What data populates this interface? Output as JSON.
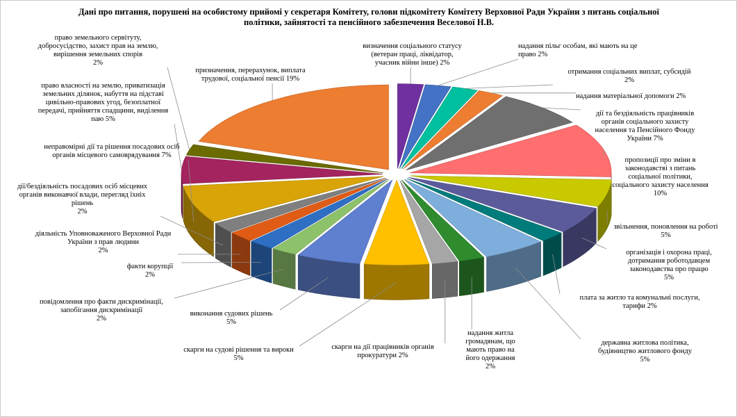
{
  "chart_data": {
    "type": "pie",
    "variant": "3d-exploded",
    "title": "Дані про питання, порушені на особистому прийомі у секретаря Комітету, голови підкомітету Комітету Верховної Ради України з питань соціальної політики, зайнятості та пенсійного забезпечення Веселової Н.В.",
    "slices": [
      {
        "label": "визначення соціального статусу (ветеран праці, ліквідатор, учасник війни інше) 2%",
        "value": 2,
        "color": "#7030a0"
      },
      {
        "label": "надання пільг особам, які мають на це право 2%",
        "value": 2,
        "color": "#4472c4"
      },
      {
        "label": "отримання соціальних виплат, субсидій 2%",
        "value": 2,
        "color": "#00c0a0"
      },
      {
        "label": "надання матеріальної допомоги 2%",
        "value": 2,
        "color": "#ed7d31"
      },
      {
        "label": "дії та бездіяльність працівників органів соціального захисту населення та Пенсійного Фонду України 7%",
        "value": 7,
        "color": "#6f6f6f"
      },
      {
        "label": "пропозиції про зміни в законодавстві з питань соціальної політики, соціального захисту населення 10%",
        "value": 10,
        "color": "#ff6f6f"
      },
      {
        "label": "…",
        "value": 5,
        "color": "#c9c900"
      },
      {
        "label": "…",
        "value": 5,
        "color": "#5b5b9c"
      },
      {
        "label": "…",
        "value": 2,
        "color": "#007b7b"
      },
      {
        "label": "…",
        "value": 5,
        "color": "#7eaedc"
      },
      {
        "label": "…",
        "value": 2,
        "color": "#2e8b2e"
      },
      {
        "label": "…",
        "value": 2,
        "color": "#a6a6a6"
      },
      {
        "label": "…",
        "value": 5,
        "color": "#ffc000"
      },
      {
        "label": "…",
        "value": 5,
        "color": "#5f7fd0"
      },
      {
        "label": "…",
        "value": 2,
        "color": "#8dc26a"
      },
      {
        "label": "…",
        "value": 2,
        "color": "#2e6fc4"
      },
      {
        "label": "…",
        "value": 2,
        "color": "#e05c16"
      },
      {
        "label": "…",
        "value": 2,
        "color": "#7f7f7f"
      },
      {
        "label": "…",
        "value": 7,
        "color": "#d9a408"
      },
      {
        "label": "…",
        "value": 5,
        "color": "#a3245e"
      },
      {
        "label": "…",
        "value": 2,
        "color": "#6b6b00"
      },
      {
        "label": "…",
        "value": 19,
        "color": "#ed7d31"
      }
    ]
  },
  "labels": [
    {
      "lines": [
        "визначення соціального статусу",
        "(ветеран праці, ліквідатор,",
        "учасник війни інше) 2%"
      ]
    },
    {
      "lines": [
        "надання  пільг особам, які мають на це",
        "право 2%"
      ]
    },
    {
      "lines": [
        "отримання соціальних  виплат, субсидій",
        "2%"
      ]
    },
    {
      "lines": [
        "надання  матеріальної допомоги 2%"
      ]
    },
    {
      "lines": [
        "дії та бездіяльність працівників",
        "органів соціального захисту",
        "населення  та Пенсійного Фонду",
        "України 7%"
      ]
    },
    {
      "lines": [
        "пропозиції про зміни в",
        "законодавстві з питань",
        "соціальної політики,",
        "соціального захисту населення",
        "10%"
      ]
    },
    {
      "lines": [
        "звільнення, поновлення на роботі",
        "5%"
      ]
    },
    {
      "lines": [
        "організація і охорона праці,",
        "дотримання роботодавцем",
        "законодавства про працю",
        "5%"
      ]
    },
    {
      "lines": [
        "плата за житло та комунальні послуги,",
        "тарифи 2%"
      ]
    },
    {
      "lines": [
        "державна житлова політика,",
        "будівництво житлового фонду",
        "5%"
      ]
    },
    {
      "lines": [
        "надання  житла",
        "громадянам, що",
        "мають право на",
        "його одержання",
        "2%"
      ]
    },
    {
      "lines": [
        "скарги на дії працівників органів",
        "прокуратури 2%"
      ]
    },
    {
      "lines": [
        "скарги на судові рішення та вироки",
        "5%"
      ]
    },
    {
      "lines": [
        "виконання судових рішень",
        "5%"
      ]
    },
    {
      "lines": [
        "повідомлення про факти дискримінації,",
        "запобігання дискримінації",
        "2%"
      ]
    },
    {
      "lines": [
        "факти корупції",
        "2%"
      ]
    },
    {
      "lines": [
        "діяльність Уповноваженого Верховної Ради",
        "України з прав людини",
        "2%"
      ]
    },
    {
      "lines": [
        "дії/бездіяльність посадових  осіб місцевих",
        "органів виконавчої влади, перегляд їхніх",
        "рішень",
        "2%"
      ]
    },
    {
      "lines": [
        "неправомірні дії та рішення посадових  осіб",
        "органів місцевого самоврядування 7%"
      ]
    },
    {
      "lines": [
        "право власності на землю, приватизація",
        "земельних ділянок, набуття на підставі",
        "цивільно-правових угод, безоплатної",
        "передачі, прийняття спадщини,  виділення",
        "паю 5%"
      ]
    },
    {
      "lines": [
        "право земельного сервітуту,",
        "добросусідство, захист  прав на землю,",
        "вирішення земельних  спорів",
        "2%"
      ]
    },
    {
      "lines": [
        "призначення, перерахунок, виплата",
        "трудової, соціальної пенсії  19%"
      ]
    }
  ]
}
